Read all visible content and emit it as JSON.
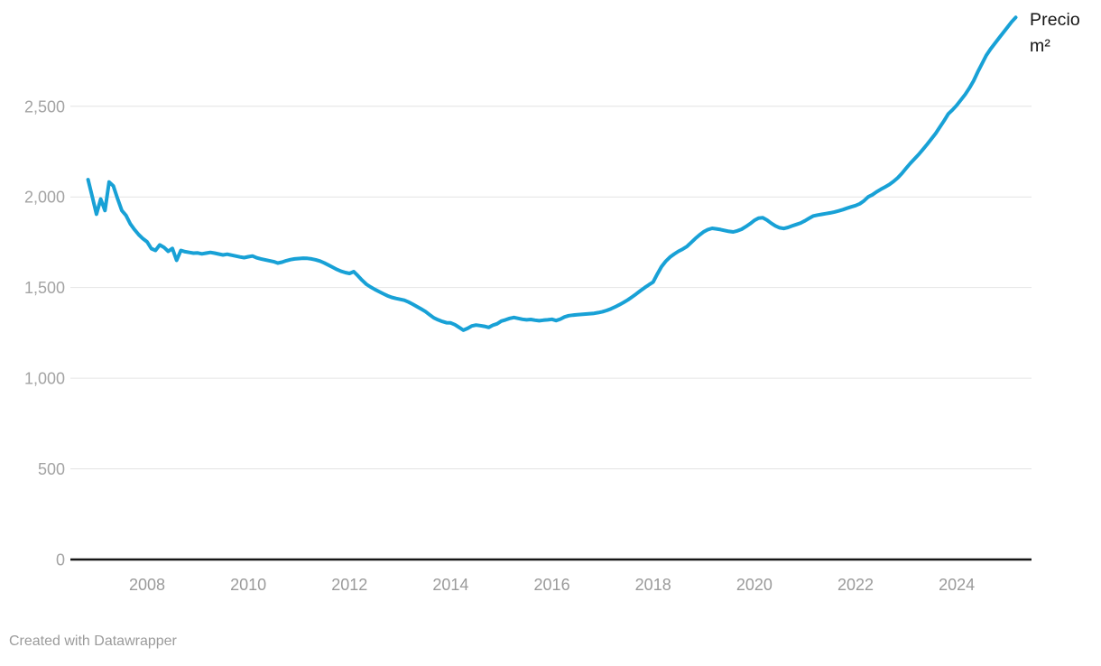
{
  "chart_data": {
    "type": "line",
    "title": "",
    "annotation_label": "Precio m²",
    "footer_credit": "Created with Datawrapper",
    "grid": "horizontal-only",
    "legend_position": "end-of-line-right",
    "line_color": "#18a1d6",
    "axis_color": "#161616",
    "gridline_color": "#e4e4e4",
    "tick_label_color": "#9a9a9a",
    "ylim": [
      0,
      3000
    ],
    "y_ticks": [
      {
        "value": 0,
        "label": "0"
      },
      {
        "value": 500,
        "label": "500"
      },
      {
        "value": 1000,
        "label": "1,000"
      },
      {
        "value": 1500,
        "label": "1,500"
      },
      {
        "value": 2000,
        "label": "2,000"
      },
      {
        "value": 2500,
        "label": "2,500"
      }
    ],
    "x_ticks": [
      {
        "year": 2008,
        "label": "2008"
      },
      {
        "year": 2010,
        "label": "2010"
      },
      {
        "year": 2012,
        "label": "2012"
      },
      {
        "year": 2014,
        "label": "2014"
      },
      {
        "year": 2016,
        "label": "2016"
      },
      {
        "year": 2018,
        "label": "2018"
      },
      {
        "year": 2020,
        "label": "2020"
      },
      {
        "year": 2022,
        "label": "2022"
      },
      {
        "year": 2024,
        "label": "2024"
      }
    ],
    "series": [
      {
        "name": "Precio m²",
        "frequency": "monthly",
        "start": "2006-11",
        "end": "2025-03",
        "values": [
          2095,
          2000,
          1905,
          1988,
          1925,
          2082,
          2060,
          1990,
          1925,
          1898,
          1852,
          1820,
          1792,
          1770,
          1752,
          1715,
          1705,
          1735,
          1722,
          1700,
          1716,
          1650,
          1705,
          1698,
          1694,
          1690,
          1691,
          1686,
          1690,
          1694,
          1690,
          1685,
          1680,
          1684,
          1679,
          1674,
          1669,
          1665,
          1670,
          1674,
          1664,
          1658,
          1653,
          1648,
          1643,
          1635,
          1640,
          1648,
          1654,
          1658,
          1660,
          1662,
          1661,
          1658,
          1653,
          1646,
          1636,
          1624,
          1612,
          1600,
          1590,
          1583,
          1578,
          1588,
          1565,
          1540,
          1518,
          1503,
          1490,
          1478,
          1466,
          1455,
          1446,
          1440,
          1435,
          1430,
          1420,
          1408,
          1395,
          1382,
          1368,
          1350,
          1333,
          1322,
          1313,
          1306,
          1305,
          1295,
          1280,
          1265,
          1275,
          1288,
          1293,
          1290,
          1286,
          1280,
          1292,
          1300,
          1315,
          1322,
          1330,
          1335,
          1330,
          1325,
          1322,
          1324,
          1320,
          1317,
          1320,
          1322,
          1325,
          1318,
          1326,
          1338,
          1345,
          1348,
          1350,
          1352,
          1354,
          1356,
          1358,
          1362,
          1367,
          1374,
          1383,
          1393,
          1405,
          1418,
          1432,
          1448,
          1465,
          1483,
          1500,
          1515,
          1530,
          1575,
          1615,
          1645,
          1668,
          1685,
          1700,
          1712,
          1726,
          1748,
          1770,
          1790,
          1808,
          1820,
          1827,
          1824,
          1820,
          1815,
          1810,
          1807,
          1813,
          1822,
          1836,
          1852,
          1870,
          1883,
          1885,
          1872,
          1855,
          1840,
          1830,
          1826,
          1832,
          1840,
          1848,
          1856,
          1868,
          1882,
          1895,
          1900,
          1904,
          1908,
          1912,
          1917,
          1923,
          1930,
          1938,
          1945,
          1952,
          1962,
          1978,
          2000,
          2012,
          2028,
          2042,
          2055,
          2068,
          2085,
          2105,
          2130,
          2158,
          2185,
          2210,
          2235,
          2262,
          2290,
          2320,
          2350,
          2385,
          2420,
          2458,
          2480,
          2505,
          2535,
          2565,
          2600,
          2640,
          2690,
          2735,
          2780,
          2815,
          2845,
          2875,
          2905,
          2935,
          2965,
          2990
        ]
      }
    ]
  },
  "footer": {
    "credit": "Created with Datawrapper"
  }
}
